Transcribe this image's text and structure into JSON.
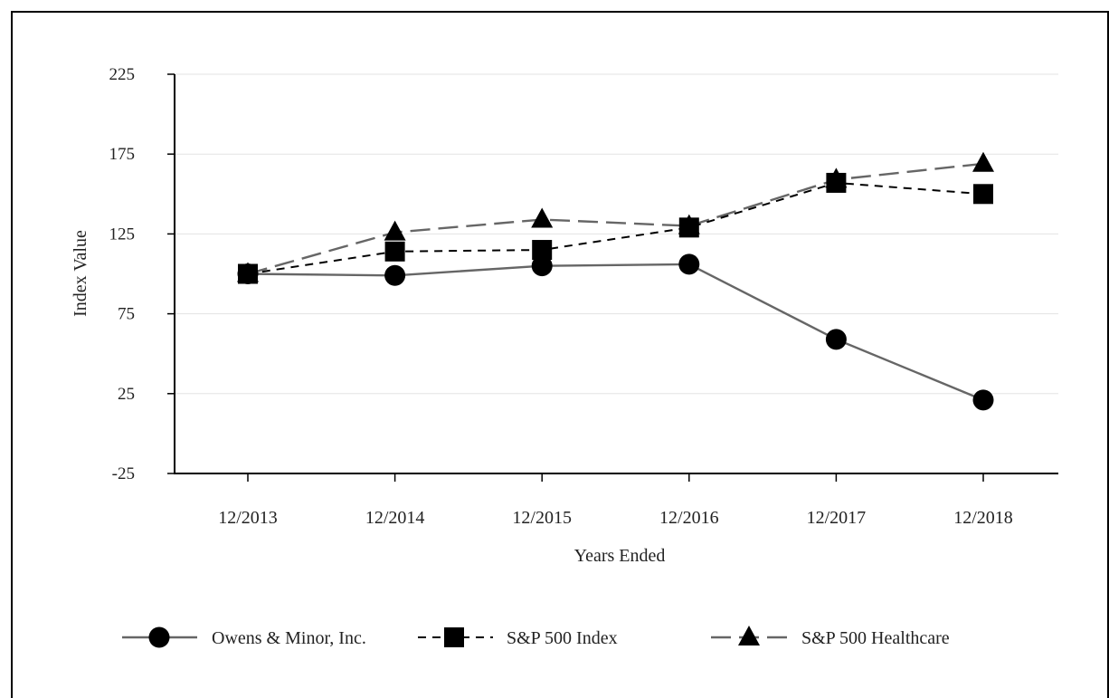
{
  "chart_data": {
    "type": "line",
    "title": "",
    "xlabel": "Years Ended",
    "ylabel": "Index Value",
    "categories": [
      "12/2013",
      "12/2014",
      "12/2015",
      "12/2016",
      "12/2017",
      "12/2018"
    ],
    "yticks": [
      "-25",
      "25",
      "75",
      "125",
      "175",
      "225"
    ],
    "ylim": [
      -25,
      225
    ],
    "grid": true,
    "legend_position": "bottom",
    "series": [
      {
        "name": "Owens & Minor, Inc.",
        "values": [
          100,
          99,
          105,
          106,
          59,
          21
        ],
        "marker": "circle",
        "line_style": "solid",
        "color": "#666666"
      },
      {
        "name": "S&P 500 Index",
        "values": [
          100,
          114,
          115,
          129,
          157,
          150
        ],
        "marker": "square",
        "line_style": "short-dash",
        "color": "#000000"
      },
      {
        "name": "S&P 500 Healthcare",
        "values": [
          100,
          126,
          134,
          130,
          159,
          169
        ],
        "marker": "triangle",
        "line_style": "long-dash",
        "color": "#666666"
      }
    ]
  }
}
